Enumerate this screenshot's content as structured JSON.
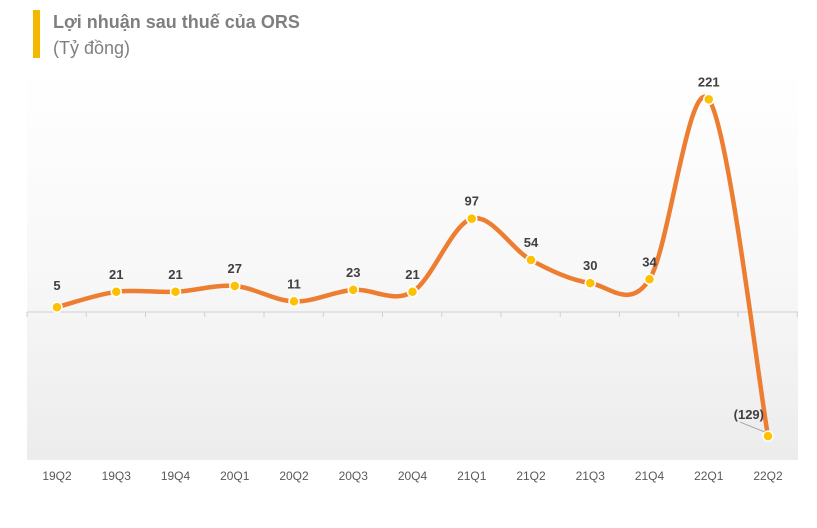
{
  "header": {
    "title": "Lợi nhuận sau thuế của ORS",
    "subtitle": "(Tỷ đồng)"
  },
  "colors": {
    "accent": "#f5b800",
    "line": "#ed7d31",
    "marker": "#ffc000",
    "text": "#7f7f7f"
  },
  "chart_data": {
    "type": "line",
    "title": "Lợi nhuận sau thuế của ORS",
    "subtitle": "(Tỷ đồng)",
    "categories": [
      "19Q2",
      "19Q3",
      "19Q4",
      "20Q1",
      "20Q2",
      "20Q3",
      "20Q4",
      "21Q1",
      "21Q2",
      "21Q3",
      "21Q4",
      "22Q1",
      "22Q2"
    ],
    "series": [
      {
        "values": [
          5,
          21,
          21,
          27,
          11,
          23,
          21,
          97,
          54,
          30,
          34,
          221,
          -129
        ]
      }
    ],
    "data_labels": [
      "5",
      "21",
      "21",
      "27",
      "11",
      "23",
      "21",
      "97",
      "54",
      "30",
      "34",
      "221",
      "(129)"
    ],
    "smooth": true,
    "grid": false,
    "legend": "none"
  }
}
